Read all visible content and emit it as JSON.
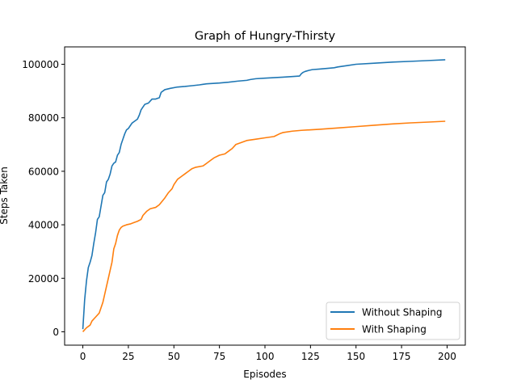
{
  "chart_data": {
    "type": "line",
    "title": "Graph of Hungry-Thirsty",
    "xlabel": "Episodes",
    "ylabel": "Steps Taken",
    "xlim": [
      -10,
      210
    ],
    "ylim": [
      -5000,
      106500
    ],
    "xticks": [
      0,
      25,
      50,
      75,
      100,
      125,
      150,
      175,
      200
    ],
    "yticks": [
      0,
      20000,
      40000,
      60000,
      80000,
      100000
    ],
    "grid": false,
    "legend_position": "lower-right",
    "series": [
      {
        "name": "Without Shaping",
        "color": "#1f77b4",
        "points": [
          [
            0,
            1000
          ],
          [
            1,
            12000
          ],
          [
            2,
            19000
          ],
          [
            3,
            24000
          ],
          [
            4,
            26000
          ],
          [
            5,
            28500
          ],
          [
            6,
            33000
          ],
          [
            7,
            37000
          ],
          [
            8,
            42000
          ],
          [
            9,
            43000
          ],
          [
            10,
            47000
          ],
          [
            11,
            51000
          ],
          [
            12,
            52000
          ],
          [
            13,
            56000
          ],
          [
            14,
            57000
          ],
          [
            15,
            59000
          ],
          [
            16,
            62000
          ],
          [
            17,
            63000
          ],
          [
            18,
            63500
          ],
          [
            19,
            66000
          ],
          [
            20,
            67000
          ],
          [
            21,
            70000
          ],
          [
            22,
            72000
          ],
          [
            23,
            74000
          ],
          [
            24,
            75500
          ],
          [
            25,
            76000
          ],
          [
            26,
            77000
          ],
          [
            27,
            78000
          ],
          [
            28,
            78500
          ],
          [
            29,
            79000
          ],
          [
            30,
            79500
          ],
          [
            31,
            81000
          ],
          [
            32,
            83000
          ],
          [
            33,
            84000
          ],
          [
            34,
            85000
          ],
          [
            36,
            85500
          ],
          [
            38,
            87000
          ],
          [
            40,
            87000
          ],
          [
            42,
            87500
          ],
          [
            43,
            89500
          ],
          [
            45,
            90500
          ],
          [
            48,
            91000
          ],
          [
            52,
            91500
          ],
          [
            56,
            91700
          ],
          [
            60,
            92000
          ],
          [
            64,
            92300
          ],
          [
            66,
            92500
          ],
          [
            68,
            92700
          ],
          [
            75,
            93000
          ],
          [
            80,
            93300
          ],
          [
            85,
            93700
          ],
          [
            90,
            94000
          ],
          [
            92,
            94300
          ],
          [
            95,
            94600
          ],
          [
            100,
            94800
          ],
          [
            105,
            95000
          ],
          [
            110,
            95200
          ],
          [
            115,
            95400
          ],
          [
            119,
            95600
          ],
          [
            120,
            96500
          ],
          [
            121,
            97000
          ],
          [
            122,
            97300
          ],
          [
            124,
            97700
          ],
          [
            126,
            98000
          ],
          [
            130,
            98200
          ],
          [
            135,
            98500
          ],
          [
            138,
            98700
          ],
          [
            140,
            99000
          ],
          [
            145,
            99500
          ],
          [
            150,
            100000
          ],
          [
            160,
            100400
          ],
          [
            170,
            100800
          ],
          [
            180,
            101100
          ],
          [
            190,
            101400
          ],
          [
            199,
            101700
          ]
        ]
      },
      {
        "name": "With Shaping",
        "color": "#ff7f0e",
        "points": [
          [
            0,
            0
          ],
          [
            2,
            1500
          ],
          [
            4,
            2500
          ],
          [
            5,
            4000
          ],
          [
            7,
            5500
          ],
          [
            9,
            7000
          ],
          [
            10,
            9000
          ],
          [
            11,
            11000
          ],
          [
            12,
            14000
          ],
          [
            13,
            17000
          ],
          [
            14,
            20000
          ],
          [
            15,
            23000
          ],
          [
            16,
            26000
          ],
          [
            17,
            31000
          ],
          [
            18,
            33000
          ],
          [
            19,
            36000
          ],
          [
            20,
            38000
          ],
          [
            21,
            39000
          ],
          [
            22,
            39500
          ],
          [
            24,
            40000
          ],
          [
            26,
            40300
          ],
          [
            28,
            40800
          ],
          [
            30,
            41300
          ],
          [
            32,
            42000
          ],
          [
            33,
            43500
          ],
          [
            35,
            45000
          ],
          [
            37,
            46000
          ],
          [
            40,
            46500
          ],
          [
            42,
            47500
          ],
          [
            45,
            50000
          ],
          [
            47,
            52000
          ],
          [
            49,
            53500
          ],
          [
            50,
            55000
          ],
          [
            52,
            57000
          ],
          [
            54,
            58000
          ],
          [
            56,
            59000
          ],
          [
            58,
            60000
          ],
          [
            60,
            61000
          ],
          [
            62,
            61500
          ],
          [
            66,
            62000
          ],
          [
            68,
            63000
          ],
          [
            70,
            64000
          ],
          [
            72,
            65000
          ],
          [
            75,
            66000
          ],
          [
            78,
            66500
          ],
          [
            80,
            67500
          ],
          [
            82,
            68500
          ],
          [
            84,
            70000
          ],
          [
            86,
            70500
          ],
          [
            88,
            71000
          ],
          [
            90,
            71500
          ],
          [
            95,
            72000
          ],
          [
            100,
            72500
          ],
          [
            105,
            73000
          ],
          [
            108,
            74000
          ],
          [
            110,
            74500
          ],
          [
            115,
            75000
          ],
          [
            120,
            75300
          ],
          [
            130,
            75700
          ],
          [
            140,
            76200
          ],
          [
            150,
            76700
          ],
          [
            160,
            77200
          ],
          [
            170,
            77700
          ],
          [
            180,
            78100
          ],
          [
            190,
            78400
          ],
          [
            199,
            78700
          ]
        ]
      }
    ]
  }
}
